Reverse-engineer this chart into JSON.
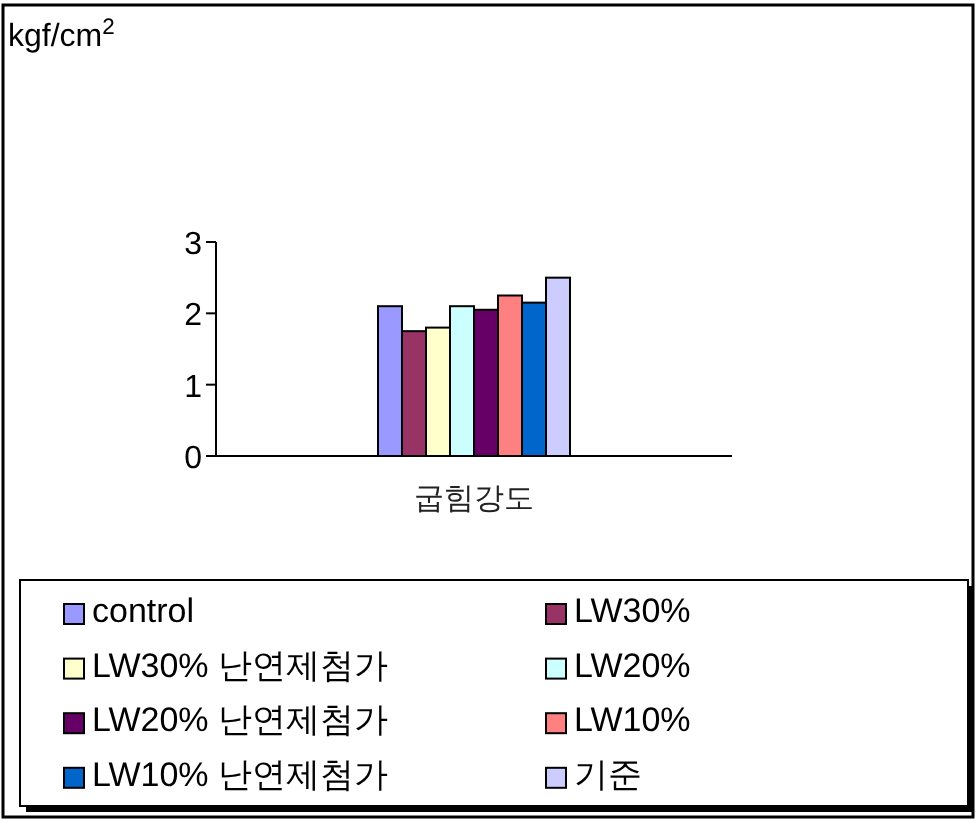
{
  "chart_data": {
    "type": "bar",
    "annotations": [
      "kgf/cm$^{2}$"
    ],
    "categories": [
      "굽힘강도"
    ],
    "series": [
      {
        "name": "control",
        "color": "#9999ff",
        "values": [
          2.1
        ]
      },
      {
        "name": "LW30%",
        "color": "#993366",
        "values": [
          1.75
        ]
      },
      {
        "name": "LW30% 난연제첨가",
        "color": "#ffffcc",
        "values": [
          1.8
        ]
      },
      {
        "name": "LW20%",
        "color": "#ccffff",
        "values": [
          2.1
        ]
      },
      {
        "name": "LW20% 난연제첨가",
        "color": "#660066",
        "values": [
          2.05
        ]
      },
      {
        "name": "LW10%",
        "color": "#ff8080",
        "values": [
          2.25
        ]
      },
      {
        "name": "LW10% 난연제첨가",
        "color": "#0066cc",
        "values": [
          2.15
        ]
      },
      {
        "name": "기준",
        "color": "#ccccff",
        "values": [
          2.5
        ]
      }
    ],
    "ylim": [
      0,
      3
    ],
    "yticks": [
      0,
      1,
      2,
      3
    ],
    "legend": "bottom"
  }
}
